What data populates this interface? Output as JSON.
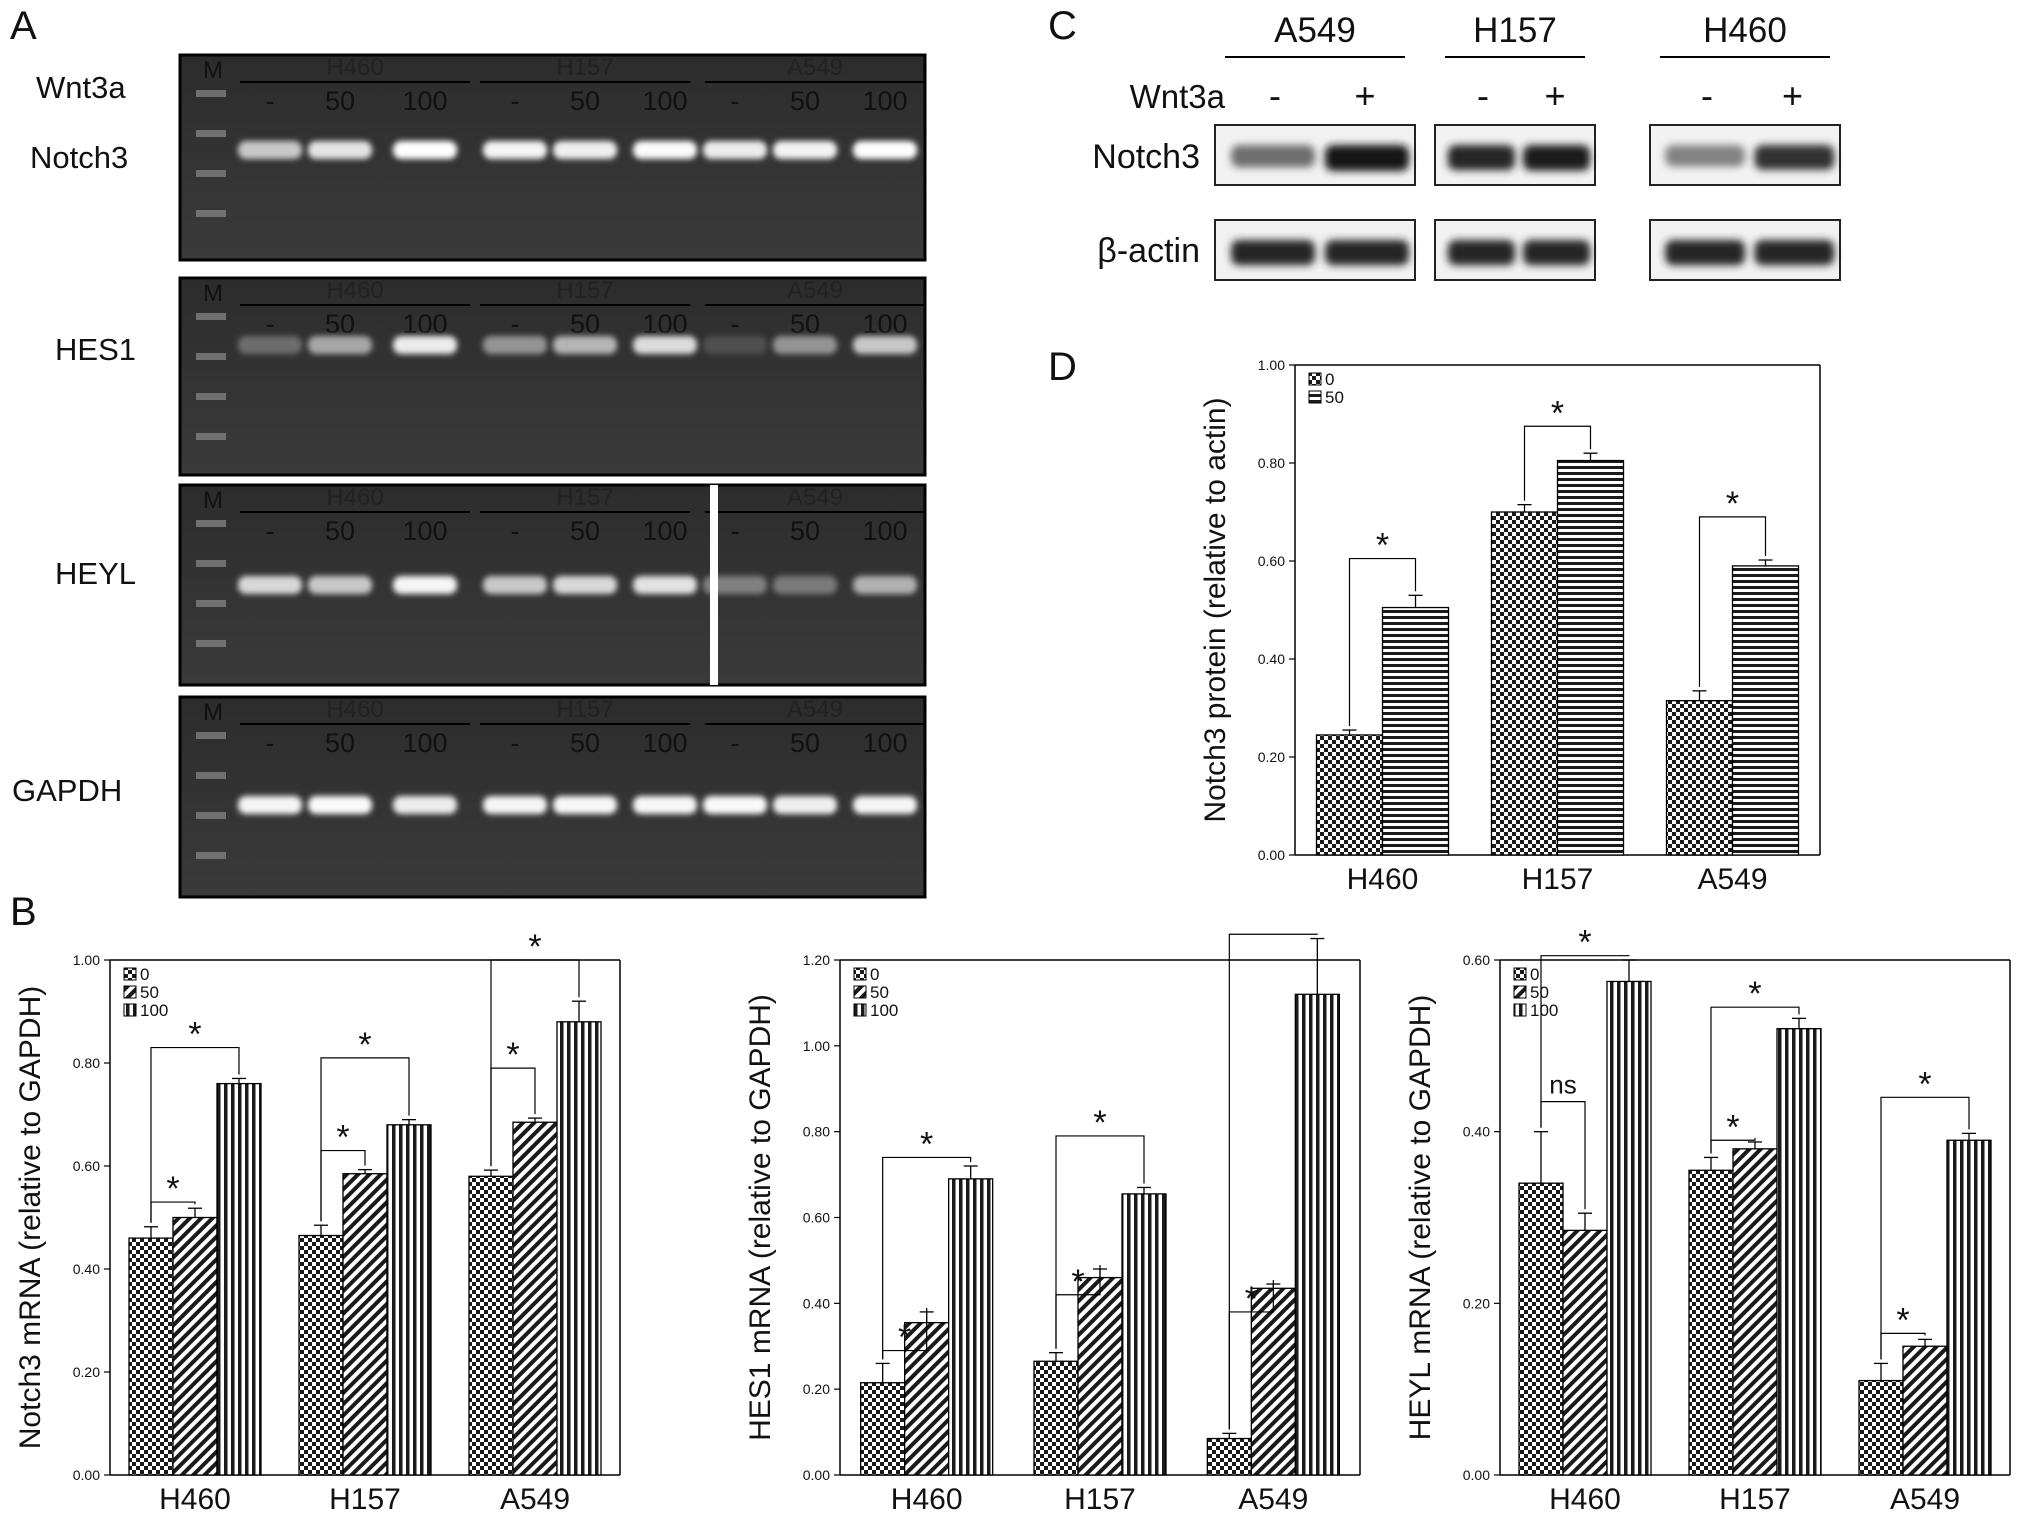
{
  "panels": {
    "A": "A",
    "B": "B",
    "C": "C",
    "D": "D"
  },
  "gels": {
    "marker": "M",
    "treatment_label": "Wnt3a",
    "doses": [
      "-",
      "50",
      "100"
    ],
    "cell_lines": [
      "H460",
      "H157",
      "A549"
    ],
    "rows": [
      {
        "gene": "Notch3",
        "intensity": [
          [
            0.72,
            0.86,
            1.0
          ],
          [
            0.95,
            0.92,
            0.98
          ],
          [
            0.9,
            0.94,
            1.0
          ]
        ]
      },
      {
        "gene": "HES1",
        "intensity": [
          [
            0.25,
            0.55,
            0.9
          ],
          [
            0.45,
            0.62,
            0.82
          ],
          [
            0.1,
            0.45,
            0.72
          ]
        ]
      },
      {
        "gene": "HEYL",
        "intensity": [
          [
            0.8,
            0.72,
            0.95
          ],
          [
            0.72,
            0.8,
            0.85
          ],
          [
            0.35,
            0.32,
            0.6
          ]
        ]
      },
      {
        "gene": "GAPDH",
        "intensity": [
          [
            0.95,
            0.98,
            0.9
          ],
          [
            0.95,
            0.96,
            0.96
          ],
          [
            0.97,
            0.92,
            0.95
          ]
        ]
      }
    ]
  },
  "blot": {
    "cell_lines": [
      "A549",
      "H157",
      "H460"
    ],
    "treatment_label": "Wnt3a",
    "signs": [
      "-",
      "+"
    ],
    "rows": [
      {
        "protein": "Notch3",
        "intensity": [
          [
            0.55,
            1.0
          ],
          [
            0.9,
            0.95
          ],
          [
            0.45,
            0.85
          ]
        ]
      },
      {
        "protein": "β-actin",
        "intensity": [
          [
            0.9,
            0.9
          ],
          [
            0.9,
            0.9
          ],
          [
            0.9,
            0.9
          ]
        ]
      }
    ]
  },
  "chart_data": [
    {
      "id": "notch3-mrna",
      "type": "bar",
      "ylabel": "Notch3 mRNA (relative to GAPDH)",
      "categories": [
        "H460",
        "H157",
        "A549"
      ],
      "ylim": [
        0,
        1.0
      ],
      "yticks": [
        "0.00",
        "0.20",
        "0.40",
        "0.60",
        "0.80",
        "1.00"
      ],
      "legend": [
        "0",
        "50",
        "100"
      ],
      "series": [
        {
          "name": "0",
          "values": [
            0.46,
            0.465,
            0.58
          ],
          "errors": [
            0.022,
            0.02,
            0.012
          ]
        },
        {
          "name": "50",
          "values": [
            0.5,
            0.585,
            0.685
          ],
          "errors": [
            0.018,
            0.008,
            0.008
          ]
        },
        {
          "name": "100",
          "values": [
            0.76,
            0.68,
            0.88
          ],
          "errors": [
            0.01,
            0.01,
            0.04
          ]
        }
      ],
      "annotations": [
        {
          "group": 0,
          "from": 0,
          "to": 1,
          "y": 0.53,
          "label": "*"
        },
        {
          "group": 0,
          "from": 0,
          "to": 2,
          "y": 0.83,
          "label": "*"
        },
        {
          "group": 1,
          "from": 0,
          "to": 1,
          "y": 0.63,
          "label": "*"
        },
        {
          "group": 1,
          "from": 0,
          "to": 2,
          "y": 0.81,
          "label": "*"
        },
        {
          "group": 2,
          "from": 0,
          "to": 1,
          "y": 0.79,
          "label": "*"
        },
        {
          "group": 2,
          "from": 0,
          "to": 2,
          "y": 1.0,
          "label": "*"
        }
      ]
    },
    {
      "id": "hes1-mrna",
      "type": "bar",
      "ylabel": "HES1 mRNA (relative to GAPDH)",
      "categories": [
        "H460",
        "H157",
        "A549"
      ],
      "ylim": [
        0,
        1.2
      ],
      "yticks": [
        "0.00",
        "0.20",
        "0.40",
        "0.60",
        "0.80",
        "1.00",
        "1.20"
      ],
      "legend": [
        "0",
        "50",
        "100"
      ],
      "series": [
        {
          "name": "0",
          "values": [
            0.215,
            0.265,
            0.085
          ],
          "errors": [
            0.045,
            0.02,
            0.012
          ]
        },
        {
          "name": "50",
          "values": [
            0.355,
            0.46,
            0.435
          ],
          "errors": [
            0.025,
            0.02,
            0.01
          ]
        },
        {
          "name": "100",
          "values": [
            0.69,
            0.655,
            1.12
          ],
          "errors": [
            0.03,
            0.015,
            0.13
          ]
        }
      ],
      "annotations": [
        {
          "group": 0,
          "from": 0,
          "to": 1,
          "y": 0.29,
          "label": "*"
        },
        {
          "group": 0,
          "from": 0,
          "to": 2,
          "y": 0.74,
          "label": "*"
        },
        {
          "group": 1,
          "from": 0,
          "to": 1,
          "y": 0.42,
          "label": "*"
        },
        {
          "group": 1,
          "from": 0,
          "to": 2,
          "y": 0.79,
          "label": "*"
        },
        {
          "group": 2,
          "from": 0,
          "to": 1,
          "y": 0.38,
          "label": "*"
        },
        {
          "group": 2,
          "from": 0,
          "to": 2,
          "y": 1.26,
          "label": "*"
        }
      ]
    },
    {
      "id": "heyl-mrna",
      "type": "bar",
      "ylabel": "HEYL mRNA (relative to GAPDH)",
      "categories": [
        "H460",
        "H157",
        "A549"
      ],
      "ylim": [
        0,
        0.6
      ],
      "yticks": [
        "0.00",
        "0.20",
        "0.40",
        "0.60"
      ],
      "legend": [
        "0",
        "50",
        "100"
      ],
      "series": [
        {
          "name": "0",
          "values": [
            0.34,
            0.355,
            0.11
          ],
          "errors": [
            0.06,
            0.015,
            0.02
          ]
        },
        {
          "name": "50",
          "values": [
            0.285,
            0.38,
            0.15
          ],
          "errors": [
            0.02,
            0.008,
            0.008
          ]
        },
        {
          "name": "100",
          "values": [
            0.575,
            0.52,
            0.39
          ],
          "errors": [
            0.025,
            0.012,
            0.008
          ]
        }
      ],
      "annotations": [
        {
          "group": 0,
          "from": 0,
          "to": 1,
          "y": 0.435,
          "label": "ns"
        },
        {
          "group": 0,
          "from": 0,
          "to": 2,
          "y": 0.605,
          "label": "*"
        },
        {
          "group": 1,
          "from": 0,
          "to": 1,
          "y": 0.39,
          "label": "*"
        },
        {
          "group": 1,
          "from": 0,
          "to": 2,
          "y": 0.545,
          "label": "*"
        },
        {
          "group": 2,
          "from": 0,
          "to": 1,
          "y": 0.165,
          "label": "*"
        },
        {
          "group": 2,
          "from": 0,
          "to": 2,
          "y": 0.44,
          "label": "*"
        }
      ]
    },
    {
      "id": "notch3-protein",
      "type": "bar",
      "ylabel": "Notch3 protein (relative to actin)",
      "categories": [
        "H460",
        "H157",
        "A549"
      ],
      "ylim": [
        0,
        1.0
      ],
      "yticks": [
        "0.00",
        "0.20",
        "0.40",
        "0.60",
        "0.80",
        "1.00"
      ],
      "legend": [
        "0",
        "50"
      ],
      "series": [
        {
          "name": "0",
          "values": [
            0.245,
            0.7,
            0.315
          ],
          "errors": [
            0.01,
            0.015,
            0.02
          ]
        },
        {
          "name": "50",
          "values": [
            0.505,
            0.805,
            0.59
          ],
          "errors": [
            0.025,
            0.015,
            0.012
          ]
        }
      ],
      "annotations": [
        {
          "group": 0,
          "from": 0,
          "to": 1,
          "y": 0.605,
          "label": "*"
        },
        {
          "group": 1,
          "from": 0,
          "to": 1,
          "y": 0.875,
          "label": "*"
        },
        {
          "group": 2,
          "from": 0,
          "to": 1,
          "y": 0.69,
          "label": "*"
        }
      ]
    }
  ]
}
